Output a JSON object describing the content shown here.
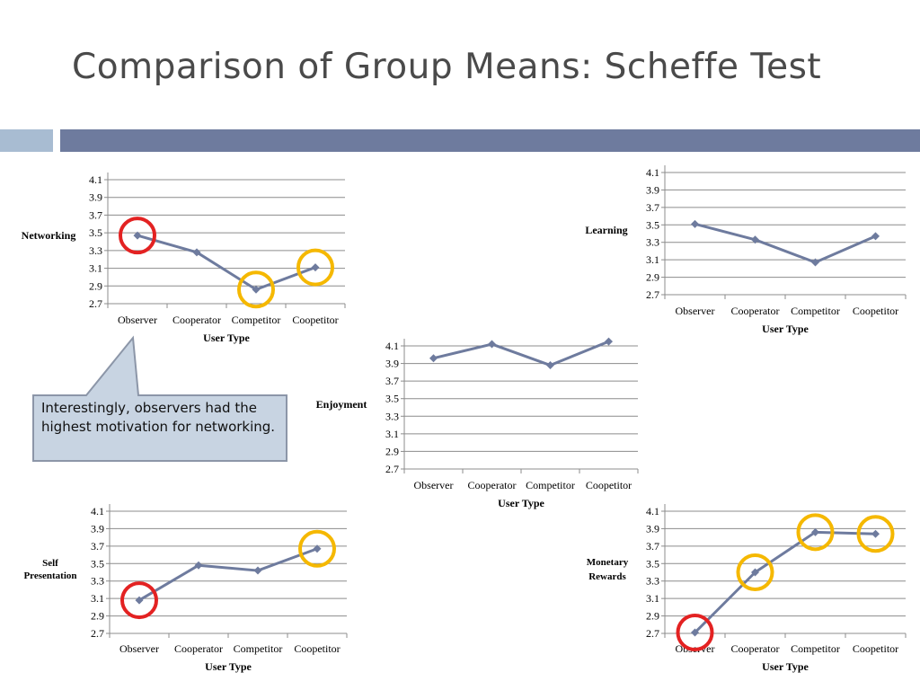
{
  "slide": {
    "title": "Comparison of Group Means: Scheffe Test",
    "callout": "Interestingly, observers had the highest motivation for networking."
  },
  "colors": {
    "line": "#6e7b9e",
    "grid": "#8c8c8c",
    "highlight_red": "#e32222",
    "highlight_yellow": "#f5b800",
    "callout_fill": "#c8d4e2",
    "callout_stroke": "#8c96a8"
  },
  "chart_data": [
    {
      "id": "networking",
      "type": "line",
      "ylabel": "Networking",
      "xlabel": "User Type",
      "categories": [
        "Observer",
        "Cooperator",
        "Competitor",
        "Coopetitor"
      ],
      "values": [
        3.47,
        3.28,
        2.86,
        3.11
      ],
      "ylim": [
        2.7,
        4.1
      ],
      "yticks": [
        "2.7",
        "2.9",
        "3.1",
        "3.3",
        "3.5",
        "3.7",
        "3.9",
        "4.1"
      ],
      "grid": true,
      "highlights": [
        {
          "index": 0,
          "color": "red"
        },
        {
          "index": 2,
          "color": "yellow"
        },
        {
          "index": 3,
          "color": "yellow"
        }
      ]
    },
    {
      "id": "learning",
      "type": "line",
      "ylabel": "Learning",
      "xlabel": "User Type",
      "categories": [
        "Observer",
        "Cooperator",
        "Competitor",
        "Coopetitor"
      ],
      "values": [
        3.51,
        3.33,
        3.07,
        3.37
      ],
      "ylim": [
        2.7,
        4.1
      ],
      "yticks": [
        "2.7",
        "2.9",
        "3.1",
        "3.3",
        "3.5",
        "3.7",
        "3.9",
        "4.1"
      ],
      "grid": true,
      "highlights": []
    },
    {
      "id": "enjoyment",
      "type": "line",
      "ylabel": "Enjoyment",
      "xlabel": "User Type",
      "categories": [
        "Observer",
        "Cooperator",
        "Competitor",
        "Coopetitor"
      ],
      "values": [
        3.96,
        4.12,
        3.88,
        4.15
      ],
      "ylim": [
        2.7,
        4.1
      ],
      "yticks": [
        "2.7",
        "2.9",
        "3.1",
        "3.3",
        "3.5",
        "3.7",
        "3.9",
        "4.1"
      ],
      "grid": true,
      "highlights": []
    },
    {
      "id": "self-presentation",
      "type": "line",
      "ylabel": "Self Presentation",
      "xlabel": "User Type",
      "categories": [
        "Observer",
        "Cooperator",
        "Competitor",
        "Coopetitor"
      ],
      "values": [
        3.08,
        3.48,
        3.42,
        3.67
      ],
      "ylim": [
        2.7,
        4.1
      ],
      "yticks": [
        "2.7",
        "2.9",
        "3.1",
        "3.3",
        "3.5",
        "3.7",
        "3.9",
        "4.1"
      ],
      "grid": true,
      "highlights": [
        {
          "index": 0,
          "color": "red"
        },
        {
          "index": 3,
          "color": "yellow"
        }
      ]
    },
    {
      "id": "monetary-rewards",
      "type": "line",
      "ylabel": "Monetary Rewards",
      "xlabel": "User Type",
      "categories": [
        "Observer",
        "Cooperator",
        "Competitor",
        "Coopetitor"
      ],
      "values": [
        2.71,
        3.4,
        3.86,
        3.84
      ],
      "ylim": [
        2.7,
        4.1
      ],
      "yticks": [
        "2.7",
        "2.9",
        "3.1",
        "3.3",
        "3.5",
        "3.7",
        "3.9",
        "4.1"
      ],
      "grid": true,
      "highlights": [
        {
          "index": 0,
          "color": "red"
        },
        {
          "index": 1,
          "color": "yellow"
        },
        {
          "index": 2,
          "color": "yellow"
        },
        {
          "index": 3,
          "color": "yellow"
        }
      ]
    }
  ]
}
